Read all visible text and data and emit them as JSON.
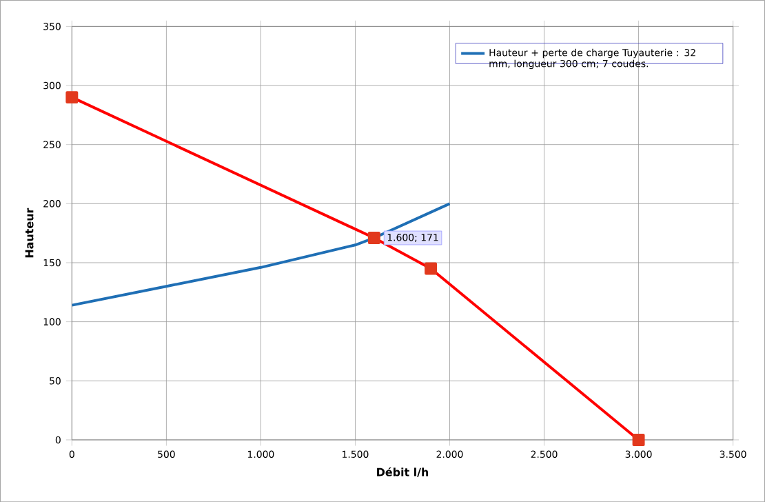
{
  "chart_data": {
    "type": "line",
    "xlabel": "Débit l/h",
    "ylabel": "Hauteur",
    "xlim": [
      0,
      3500
    ],
    "ylim": [
      0,
      350
    ],
    "xticks": [
      {
        "value": 0,
        "label": "0"
      },
      {
        "value": 500,
        "label": "500"
      },
      {
        "value": 1000,
        "label": "1.000"
      },
      {
        "value": 1500,
        "label": "1.500"
      },
      {
        "value": 2000,
        "label": "2.000"
      },
      {
        "value": 2500,
        "label": "2.500"
      },
      {
        "value": 3000,
        "label": "3.000"
      },
      {
        "value": 3500,
        "label": "3.500"
      }
    ],
    "yticks": [
      0,
      50,
      100,
      150,
      200,
      250,
      300,
      350
    ],
    "grid": true,
    "legend": "top right",
    "series": [
      {
        "name": "Hauteur + perte de charge Tuyauterie : 32 mm, longueur 300 cm; 7 coudes.",
        "color": "#1f6fb5",
        "marker": "none",
        "x": [
          0,
          500,
          1000,
          1500,
          1600,
          2000
        ],
        "values": [
          114,
          130,
          146,
          165,
          171,
          200
        ]
      },
      {
        "color": "#ff0000",
        "marker": "square",
        "x": [
          0,
          1600,
          1900,
          3000
        ],
        "values": [
          290,
          171,
          145,
          0
        ]
      }
    ],
    "annotations": [
      {
        "text": "1.600; 171",
        "x": 1600,
        "y": 171
      }
    ]
  }
}
